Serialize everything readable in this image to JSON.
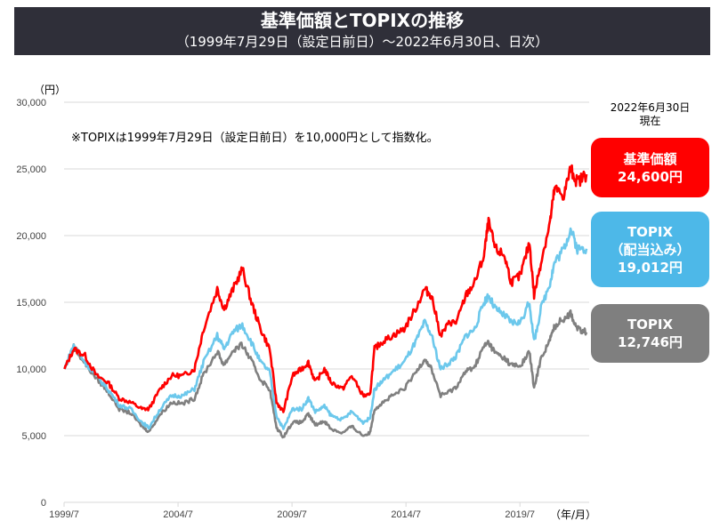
{
  "title": "基準価額とTOPIXの推移",
  "subtitle": "（1999年7月29日（設定日前日）～2022年6月30日、日次）",
  "note": "※TOPIXは1999年7月29日（設定日前日）を10,000円として指数化。",
  "as_of": [
    "2022年6月30日",
    "現在"
  ],
  "boxes": [
    {
      "label": "基準価額",
      "value": "24,600円",
      "color": "#ff0000"
    },
    {
      "label": "TOPIX",
      "label2": "（配当込み）",
      "value": "19,012円",
      "color": "#4db8e8"
    },
    {
      "label": "TOPIX",
      "value": "12,746円",
      "color": "#7f7f7f"
    }
  ],
  "chart_data": {
    "type": "line",
    "ylabel": "（円）",
    "xlabel": "（年/月）",
    "ylim": [
      0,
      30000
    ],
    "xlim": [
      1999.58,
      2022.5
    ],
    "yticks": [
      "0",
      "5,000",
      "10,000",
      "15,000",
      "20,000",
      "25,000",
      "30,000"
    ],
    "xticks": [
      {
        "label": "1999/7",
        "x": 1999.58
      },
      {
        "label": "2004/7",
        "x": 2004.58
      },
      {
        "label": "2009/7",
        "x": 2009.58
      },
      {
        "label": "2014/7",
        "x": 2014.58
      },
      {
        "label": "2019/7",
        "x": 2019.58
      }
    ],
    "grid": true,
    "x": [
      1999.6,
      2000.0,
      2000.5,
      2001.0,
      2001.5,
      2002.0,
      2002.5,
      2003.0,
      2003.3,
      2003.8,
      2004.3,
      2004.8,
      2005.3,
      2005.7,
      2006.3,
      2006.6,
      2007.0,
      2007.4,
      2007.8,
      2008.2,
      2008.6,
      2008.9,
      2009.2,
      2009.6,
      2010.0,
      2010.3,
      2010.6,
      2011.0,
      2011.3,
      2011.8,
      2012.2,
      2012.7,
      2013.0,
      2013.2,
      2013.5,
      2014.0,
      2014.5,
      2015.0,
      2015.4,
      2015.7,
      2016.1,
      2016.5,
      2016.8,
      2017.2,
      2017.6,
      2018.0,
      2018.2,
      2018.5,
      2018.9,
      2019.2,
      2019.6,
      2020.0,
      2020.2,
      2020.5,
      2020.9,
      2021.1,
      2021.5,
      2021.8,
      2022.1,
      2022.5
    ],
    "series": [
      {
        "name": "基準価額",
        "color": "#ff0000",
        "values": [
          10000,
          11500,
          11000,
          9500,
          9000,
          7800,
          7500,
          7000,
          7000,
          8500,
          9500,
          9500,
          10000,
          13000,
          16000,
          14500,
          16000,
          17500,
          15000,
          13000,
          11500,
          7500,
          6800,
          9500,
          10000,
          10500,
          9000,
          10000,
          9000,
          8500,
          9500,
          8000,
          8000,
          11500,
          12000,
          12500,
          13000,
          14500,
          16000,
          15500,
          12500,
          13500,
          13500,
          15500,
          16500,
          18500,
          21000,
          19000,
          18500,
          16500,
          17000,
          19500,
          15500,
          18000,
          21000,
          23500,
          23000,
          25000,
          24000,
          24600
        ]
      },
      {
        "name": "TOPIX（配当込み）",
        "color": "#6cc8ec",
        "values": [
          10000,
          11800,
          10500,
          9500,
          8500,
          7300,
          7000,
          6000,
          5600,
          7000,
          8000,
          8000,
          8500,
          10500,
          12500,
          11500,
          12800,
          13300,
          12000,
          10500,
          9800,
          6500,
          5500,
          7000,
          7000,
          7800,
          6800,
          7200,
          6500,
          6200,
          6800,
          6000,
          6300,
          8500,
          9000,
          9800,
          10500,
          12000,
          13500,
          12500,
          10000,
          10500,
          11000,
          12500,
          13000,
          15000,
          15500,
          14500,
          14000,
          13500,
          13500,
          15000,
          12000,
          14500,
          16500,
          18000,
          19000,
          20500,
          19000,
          19012
        ]
      },
      {
        "name": "TOPIX",
        "color": "#808080",
        "values": [
          10000,
          11700,
          10400,
          9300,
          8300,
          7000,
          6700,
          5700,
          5300,
          6600,
          7500,
          7400,
          7800,
          9600,
          11300,
          10300,
          11400,
          11800,
          10600,
          9200,
          8500,
          5600,
          4900,
          6000,
          6000,
          6600,
          5800,
          6100,
          5500,
          5200,
          5700,
          5000,
          5200,
          7000,
          7400,
          8000,
          8500,
          9700,
          10800,
          10000,
          8000,
          8300,
          8700,
          9800,
          10200,
          11700,
          12000,
          11200,
          10800,
          10300,
          10200,
          11300,
          8500,
          10800,
          12200,
          13200,
          13800,
          14200,
          13000,
          12746
        ]
      }
    ]
  }
}
